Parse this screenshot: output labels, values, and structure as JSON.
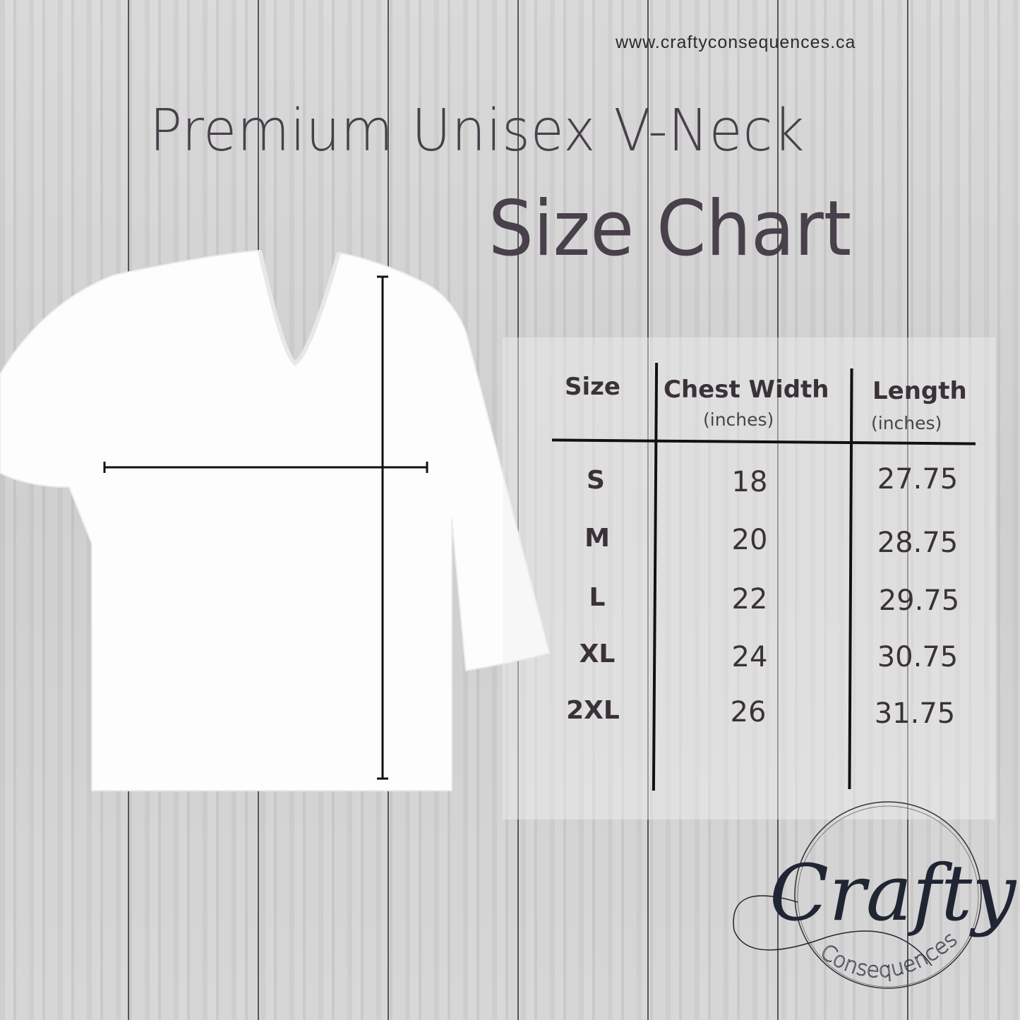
{
  "website": "www.craftyconsequences.ca",
  "title": "Premium Unisex V-Neck",
  "subtitle": "Size Chart",
  "table": {
    "headers": [
      {
        "label": "Size",
        "unit": ""
      },
      {
        "label": "Chest Width",
        "unit": "(inches)"
      },
      {
        "label": "Length",
        "unit": "(inches)"
      }
    ],
    "rows": [
      {
        "size": "S",
        "chest": "18",
        "length": "27.75"
      },
      {
        "size": "M",
        "chest": "20",
        "length": "28.75"
      },
      {
        "size": "L",
        "chest": "22",
        "length": "29.75"
      },
      {
        "size": "XL",
        "chest": "24",
        "length": "30.75"
      },
      {
        "size": "2XL",
        "chest": "26",
        "length": "31.75"
      }
    ]
  },
  "logo": {
    "main": "Crafty",
    "secondary": "Consequences"
  },
  "colors": {
    "text": "#3a3238",
    "logo": "#1f2533",
    "shirt": "#ffffff"
  }
}
